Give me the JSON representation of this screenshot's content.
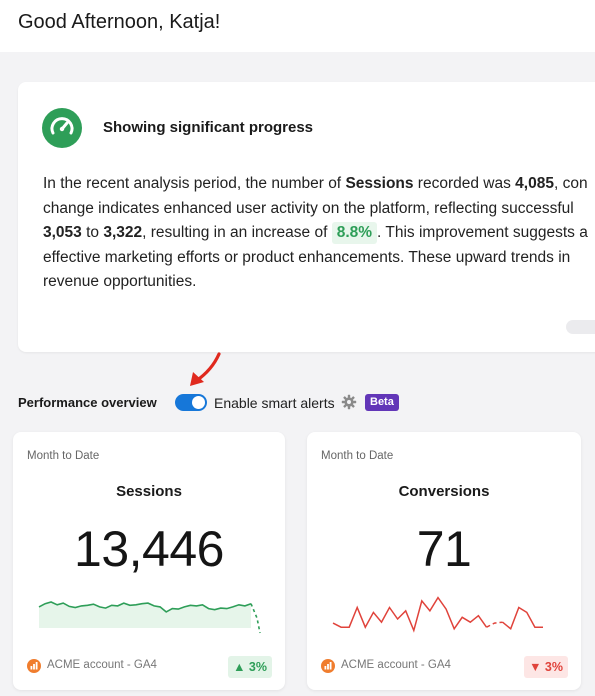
{
  "header": {
    "greeting": "Good Afternoon, Katja!"
  },
  "insight": {
    "icon": "speedometer-icon",
    "title": "Showing significant progress",
    "line1_a": "In the recent analysis period, the number of ",
    "line1_b": "Sessions",
    "line1_c": " recorded was ",
    "line1_d": "4,085",
    "line1_e": ", con",
    "line2": "change indicates enhanced user activity on the platform, reflecting successful",
    "line3_a": "3,053",
    "line3_b": " to ",
    "line3_c": "3,322",
    "line3_d": ", resulting in an increase of ",
    "line3_e": "8.8%",
    "line3_f": ". This improvement suggests a",
    "line4": "effective marketing efforts or product enhancements. These upward trends in",
    "line5": "revenue opportunities."
  },
  "performance": {
    "label": "Performance overview",
    "toggle_on": true,
    "alerts_label": "Enable smart alerts",
    "settings_icon": "gear-icon",
    "badge": "Beta"
  },
  "colors": {
    "accent_blue": "#1677d9",
    "positive_green": "#2e9e58",
    "negative_red": "#e0433b",
    "beta_purple": "#6236b8",
    "source_orange": "#f07d2e"
  },
  "cards": [
    {
      "period": "Month to Date",
      "title": "Sessions",
      "value": "13,446",
      "source": "ACME account - GA4",
      "source_icon": "analytics-icon",
      "change": "▲ 3%",
      "trend": "up",
      "spark": [
        39,
        45,
        48,
        43,
        46,
        40,
        38,
        41,
        42,
        44,
        39,
        37,
        42,
        41,
        46,
        42,
        43,
        45,
        46,
        41,
        39,
        30,
        36,
        35,
        39,
        42,
        41,
        43,
        36,
        34,
        37,
        36,
        39,
        43,
        41,
        45
      ],
      "spark_dashed_tail": [
        45,
        56,
        75
      ]
    },
    {
      "period": "Month to Date",
      "title": "Conversions",
      "value": "71",
      "source": "ACME account - GA4",
      "source_icon": "analytics-icon",
      "change": "▼ 3%",
      "trend": "down",
      "spark": [
        63,
        68,
        68,
        44,
        68,
        50,
        62,
        44,
        58,
        48,
        72,
        36,
        48,
        32,
        46,
        70,
        56,
        62,
        54,
        68
      ],
      "spark_dashed": [
        68,
        63,
        62
      ],
      "spark_tail": [
        62,
        70,
        44,
        50,
        68,
        68
      ]
    }
  ]
}
